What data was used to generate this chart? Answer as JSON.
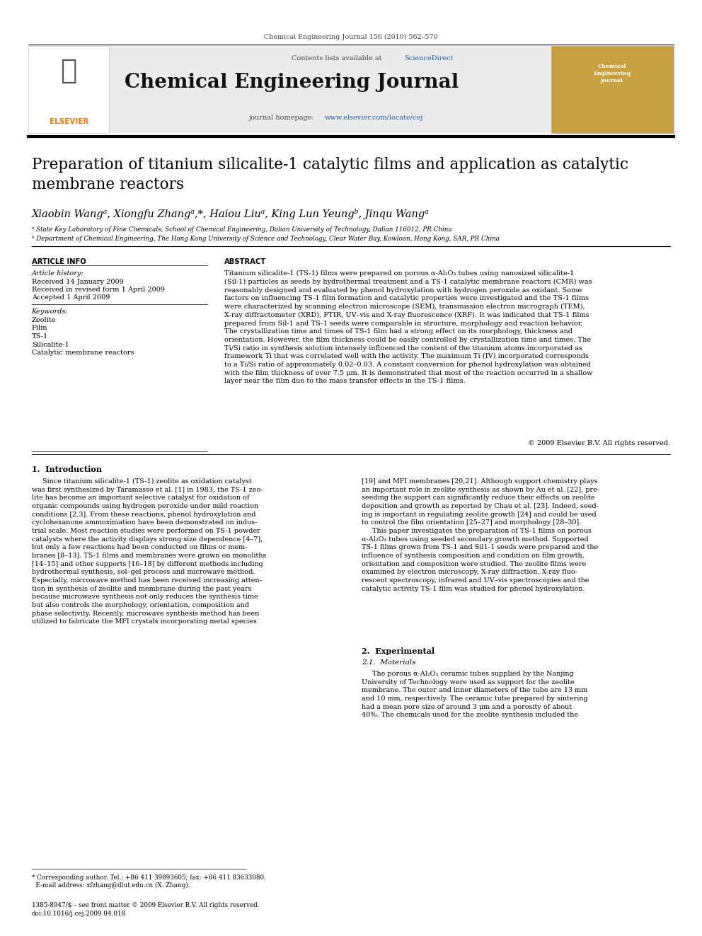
{
  "page_width": 9.92,
  "page_height": 13.23,
  "bg_color": "#ffffff",
  "journal_ref": "Chemical Engineering Journal 156 (2010) 562–570",
  "contents_line": "Contents lists available at ",
  "sciencedirect_text": "ScienceDirect",
  "sciencedirect_color": "#1a5ca8",
  "journal_name": "Chemical Engineering Journal",
  "homepage_prefix": "journal homepage: ",
  "homepage_url": "www.elsevier.com/locate/cej",
  "homepage_url_color": "#1a5ca8",
  "title": "Preparation of titanium silicalite-1 catalytic films and application as catalytic\nmembrane reactors",
  "authors": "Xiaobin Wangᵃ, Xiongfu Zhangᵃ,*, Haiou Liuᵃ, King Lun Yeungᵇ, Jinqu Wangᵃ",
  "affil_a": "ᵃ State Key Laboratory of Fine Chemicals, School of Chemical Engineering, Dalian University of Technology, Dalian 116012, PR China",
  "affil_b": "ᵇ Department of Chemical Engineering, The Hong Kong University of Science and Technology, Clear Water Bay, Kowloon, Hong Kong, SAR, PR China",
  "article_info_header": "ARTICLE INFO",
  "abstract_header": "ABSTRACT",
  "article_history_label": "Article history:",
  "received": "Received 14 January 2009",
  "revised": "Received in revised form 1 April 2009",
  "accepted": "Accepted 1 April 2009",
  "keywords_label": "Keywords:",
  "keywords": [
    "Zeolite",
    "Film",
    "TS-1",
    "Silicalite-1",
    "Catalytic membrane reactors"
  ],
  "abstract_text": "Titanium silicalite-1 (TS-1) films were prepared on porous α-Al₂O₃ tubes using nanosized silicalite-1\n(Sil-1) particles as seeds by hydrothermal treatment and a TS-1 catalytic membrane reactors (CMR) was\nreasonably designed and evaluated by phenol hydroxylation with hydrogen peroxide as oxidant. Some\nfactors on influencing TS-1 film formation and catalytic properties were investigated and the TS-1 films\nwere characterized by scanning electron microscope (SEM), transmission electron micrograph (TEM),\nX-ray diffractometer (XRD), FTIR, UV–vis and X-ray fluorescence (XRF). It was indicated that TS-1 films\nprepared from Sil-1 and TS-1 seeds were comparable in structure, morphology and reaction behavior.\nThe crystallization time and times of TS-1 film had a strong effect on its morphology, thickness and\norientation. However, the film thickness could be easily controlled by crystallization time and times. The\nTi/Si ratio in synthesis solution intensely influenced the content of the titanium atoms incorporated as\nframework Ti that was correlated well with the activity. The maximum Ti (IV) incorporated corresponds\nto a Ti/Si ratio of approximately 0.02–0.03. A constant conversion for phenol hydroxylation was obtained\nwith the film thickness of over 7.5 μm. It is demonstrated that most of the reaction occurred in a shallow\nlayer near the film due to the mass transfer effects in the TS-1 films.",
  "copyright": "© 2009 Elsevier B.V. All rights reserved.",
  "intro_header": "1.  Introduction",
  "intro_col1": "     Since titanium silicalite-1 (TS-1) zeolite as oxidation catalyst\nwas first synthesized by Taramasso et al. [1] in 1983, the TS-1 zeo-\nlite has become an important selective catalyst for oxidation of\norganic compounds using hydrogen peroxide under mild reaction\nconditions [2,3]. From these reactions, phenol hydroxylation and\ncyclohexanone ammoximation have been demonstrated on indus-\ntrial scale. Most reaction studies were performed on TS-1 powder\ncatalysts where the activity displays strong size dependence [4–7],\nbut only a few reactions had been conducted on films or mem-\nbranes [8–13]. TS-1 films and membranes were grown on monoliths\n[14–15] and other supports [16–18] by different methods including\nhydrothermal synthesis, sol–gel process and microwave method.\nEspecially, microwave method has been received increasing atten-\ntion in synthesis of zeolite and membrane during the past years\nbecause microwave synthesis not only reduces the synthesis time\nbut also controls the morphology, orientation, composition and\nphase selectivity. Recently, microwave synthesis method has been\nutilized to fabricate the MFI crystals incorporating metal species",
  "intro_col2": "[19] and MFI membranes [20,21]. Although support chemistry plays\nan important role in zeolite synthesis as shown by Au et al. [22], pre-\nseeding the support can significantly reduce their effects on zeolite\ndeposition and growth as reported by Chau et al. [23]. Indeed, seed-\ning is important in regulating zeolite growth [24] and could be used\nto control the film orientation [25–27] and morphology [28–30].\n     This paper investigates the preparation of TS-1 films on porous\nα-Al₂O₃ tubes using seeded secondary growth method. Supported\nTS-1 films grown from TS-1 and Sil1-1 seeds were prepared and the\ninfluence of synthesis composition and condition on film growth,\norientation and composition were studied. The zeolite films were\nexamined by electron microscopy, X-ray diffraction, X-ray fluo-\nrescent spectroscopy, infrared and UV–vis spectroscopies and the\ncatalytic activity TS-1 film was studied for phenol hydroxylation.",
  "section2_header": "2.  Experimental",
  "section21_header": "2.1.  Materials",
  "section21_text": "     The porous α-Al₂O₃ ceramic tubes supplied by the Nanjing\nUniversity of Technology were used as support for the zeolite\nmembrane. The outer and inner diameters of the tube are 13 mm\nand 10 mm, respectively. The ceramic tube prepared by sintering\nhad a mean pore size of around 3 μm and a porosity of about\n40%. The chemicals used for the zeolite synthesis included the",
  "footer_note1": "* Corresponding author. Tel.: +86 411 39893605; fax: +86 411 83633080.",
  "footer_note2": "  E-mail address: xfzhang@dlut.edu.cn (X. Zhang).",
  "footer_issn": "1385-8947/$ – see front matter © 2009 Elsevier B.V. All rights reserved.",
  "footer_doi": "doi:10.1016/j.cej.2009.04.018",
  "elsevier_orange": "#f07800",
  "link_blue": "#1a5ca8",
  "text_color": "#000000"
}
